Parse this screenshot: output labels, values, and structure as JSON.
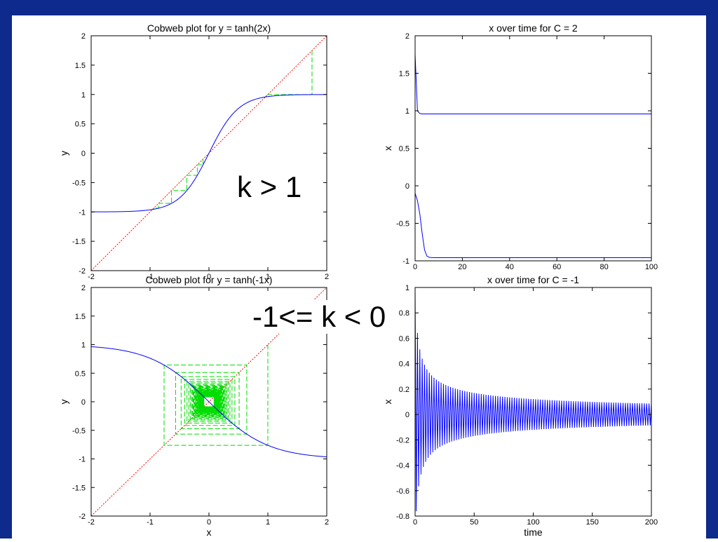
{
  "annotations": {
    "top": "k > 1",
    "bottom": "-1<= k < 0"
  },
  "colors": {
    "frame": "#0d2a8c",
    "curve": "#0000ff",
    "diagonal": "#ff0000",
    "cobweb": "#00dd00"
  },
  "chart_data": [
    {
      "type": "line",
      "title": "Cobweb plot for y = tanh(2x)",
      "xlabel": "",
      "ylabel": "y",
      "xlim": [
        -2,
        2
      ],
      "ylim": [
        -2,
        2
      ],
      "xticks": [
        "-2",
        "-1",
        "0",
        "1",
        "2"
      ],
      "yticks": [
        "2",
        "1.5",
        "1",
        "0.5",
        "0",
        "-0.5",
        "-1",
        "-1.5",
        "-2"
      ],
      "series": [
        {
          "function": "tanh(2x)",
          "color": "#0000ff",
          "style": "solid"
        },
        {
          "function": "x",
          "color": "#ff0000",
          "style": "dotted"
        },
        {
          "cobweb_starts": [
            -0.1,
            1.75
          ],
          "k": 2,
          "color": "#00dd00",
          "style": "dashed"
        }
      ]
    },
    {
      "type": "line",
      "title": "x over time for C = 2",
      "xlabel": "",
      "ylabel": "x",
      "xlim": [
        0,
        100
      ],
      "ylim": [
        -1,
        2
      ],
      "xticks": [
        "0",
        "20",
        "40",
        "60",
        "80",
        "100"
      ],
      "yticks": [
        "2",
        "1.5",
        "1",
        "0.5",
        "0",
        "-0.5",
        "-1"
      ],
      "series": [
        {
          "k": 2,
          "x0": 1.75,
          "steps": 100,
          "color": "#0000ff"
        },
        {
          "k": 2,
          "x0": -0.1,
          "steps": 100,
          "color": "#0000ff"
        }
      ]
    },
    {
      "type": "line",
      "title": "Cobweb plot for y = tanh(-1x)",
      "xlabel": "x",
      "ylabel": "y",
      "xlim": [
        -2,
        2
      ],
      "ylim": [
        -2,
        2
      ],
      "xticks": [
        "-2",
        "-1",
        "0",
        "1",
        "2"
      ],
      "yticks": [
        "2",
        "1.5",
        "1",
        "0.5",
        "0",
        "-0.5",
        "-1",
        "-1.5",
        "-2"
      ],
      "series": [
        {
          "function": "tanh(-x)",
          "color": "#0000ff",
          "style": "solid"
        },
        {
          "function": "x",
          "color": "#ff0000",
          "style": "dotted"
        },
        {
          "cobweb_start": 1.0,
          "k": -1,
          "iterations": 200,
          "color": "#00dd00",
          "style": "dashed"
        }
      ]
    },
    {
      "type": "line",
      "title": "x over time for C = -1",
      "xlabel": "time",
      "ylabel": "x",
      "xlim": [
        0,
        200
      ],
      "ylim": [
        -0.8,
        1
      ],
      "xticks": [
        "0",
        "50",
        "100",
        "150",
        "200"
      ],
      "yticks": [
        "1",
        "0.8",
        "0.6",
        "0.4",
        "0.2",
        "0",
        "-0.2",
        "-0.4",
        "-0.6",
        "-0.8"
      ],
      "series": [
        {
          "k": -1,
          "x0": 1.0,
          "steps": 200,
          "color": "#0000ff"
        }
      ]
    }
  ]
}
